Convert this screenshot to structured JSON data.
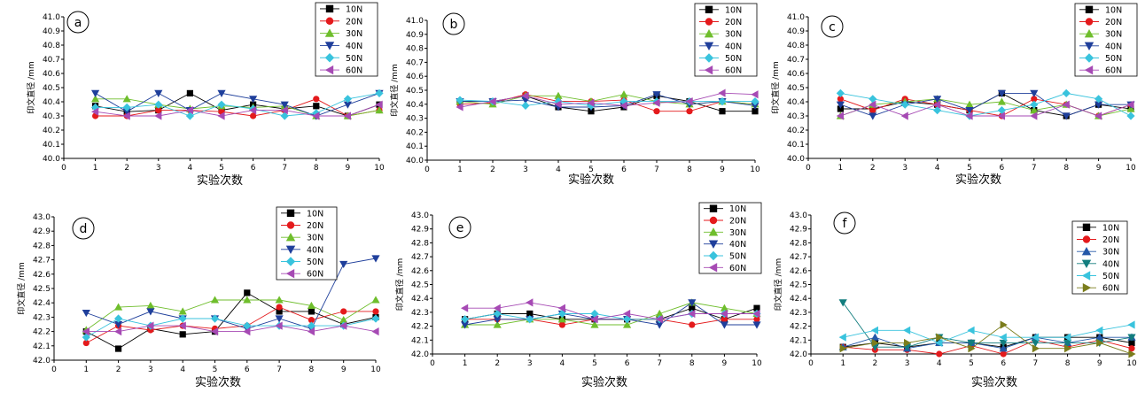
{
  "colors": {
    "10N": "#000000",
    "20N": "#e41a1c",
    "30N": "#6fbe2c",
    "40N": "#1f3f9b",
    "50N": "#39c3dd",
    "60N": "#a64ab4",
    "f_30N": "#2458a8",
    "f_40N": "#127d7e",
    "f_60N": "#7b7d1c"
  },
  "chart_data": [
    {
      "panel": "a",
      "type": "line",
      "xlabel": "实验次数",
      "ylabel": "印文直径 /mm",
      "xlim": [
        0,
        10
      ],
      "ylim": [
        40.0,
        41.0
      ],
      "yticks": [
        "40.0",
        "40.1",
        "40.2",
        "40.3",
        "40.4",
        "40.5",
        "40.6",
        "40.7",
        "40.8",
        "40.9",
        "41.0"
      ],
      "xticks": [
        "0",
        "1",
        "2",
        "3",
        "4",
        "5",
        "6",
        "7",
        "8",
        "9",
        "10"
      ],
      "x": [
        1,
        2,
        3,
        4,
        5,
        6,
        7,
        8,
        9,
        10
      ],
      "series": [
        {
          "name": "10N",
          "values": [
            40.37,
            40.33,
            40.34,
            40.46,
            40.34,
            40.38,
            40.35,
            40.37,
            40.3,
            40.38
          ]
        },
        {
          "name": "20N",
          "values": [
            40.3,
            40.3,
            40.34,
            40.34,
            40.33,
            40.3,
            40.34,
            40.42,
            40.3,
            40.34
          ]
        },
        {
          "name": "30N",
          "values": [
            40.42,
            40.42,
            40.38,
            40.35,
            40.37,
            40.36,
            40.37,
            40.3,
            40.3,
            40.34
          ]
        },
        {
          "name": "40N",
          "values": [
            40.46,
            40.33,
            40.46,
            40.34,
            40.46,
            40.42,
            40.38,
            40.3,
            40.38,
            40.46
          ]
        },
        {
          "name": "50N",
          "values": [
            40.36,
            40.36,
            40.38,
            40.3,
            40.38,
            40.35,
            40.3,
            40.32,
            40.42,
            40.46
          ]
        },
        {
          "name": "60N",
          "values": [
            40.33,
            40.3,
            40.3,
            40.34,
            40.3,
            40.34,
            40.34,
            40.3,
            40.3,
            40.38
          ]
        }
      ]
    },
    {
      "panel": "b",
      "type": "line",
      "xlabel": "实验次数",
      "ylabel": "印文直径 /mm",
      "xlim": [
        0,
        10
      ],
      "ylim": [
        40.0,
        41.0
      ],
      "yticks": [
        "40.0",
        "40.1",
        "40.2",
        "40.3",
        "40.4",
        "40.5",
        "40.6",
        "40.7",
        "40.8",
        "40.9",
        "41.0"
      ],
      "xticks": [
        "0",
        "1",
        "2",
        "3",
        "4",
        "5",
        "6",
        "7",
        "8",
        "9",
        "10"
      ],
      "x": [
        1,
        2,
        3,
        4,
        5,
        6,
        7,
        8,
        9,
        10
      ],
      "series": [
        {
          "name": "10N",
          "values": [
            40.42,
            40.42,
            40.46,
            40.38,
            40.35,
            40.38,
            40.46,
            40.42,
            40.35,
            40.35
          ]
        },
        {
          "name": "20N",
          "values": [
            40.4,
            40.41,
            40.47,
            40.42,
            40.42,
            40.43,
            40.35,
            40.35,
            40.42,
            40.4
          ]
        },
        {
          "name": "30N",
          "values": [
            40.42,
            40.4,
            40.46,
            40.46,
            40.42,
            40.47,
            40.42,
            40.4,
            40.42,
            40.4
          ]
        },
        {
          "name": "40N",
          "values": [
            40.42,
            40.42,
            40.43,
            40.38,
            40.38,
            40.39,
            40.47,
            40.4,
            40.42,
            40.39
          ]
        },
        {
          "name": "50N",
          "values": [
            40.43,
            40.42,
            40.39,
            40.42,
            40.39,
            40.42,
            40.42,
            40.42,
            40.42,
            40.42
          ]
        },
        {
          "name": "60N",
          "values": [
            40.38,
            40.42,
            40.46,
            40.4,
            40.41,
            40.39,
            40.41,
            40.42,
            40.48,
            40.47
          ]
        }
      ]
    },
    {
      "panel": "c",
      "type": "line",
      "xlabel": "实验次数",
      "ylabel": "印文直径 /mm",
      "xlim": [
        0,
        10
      ],
      "ylim": [
        40.0,
        41.0
      ],
      "yticks": [
        "40.0",
        "40.1",
        "40.2",
        "40.3",
        "40.4",
        "40.5",
        "40.6",
        "40.7",
        "40.8",
        "40.9",
        "41.0"
      ],
      "xticks": [
        "0",
        "1",
        "2",
        "3",
        "4",
        "5",
        "6",
        "7",
        "8",
        "9",
        "10"
      ],
      "x": [
        1,
        2,
        3,
        4,
        5,
        6,
        7,
        8,
        9,
        10
      ],
      "series": [
        {
          "name": "10N",
          "values": [
            40.35,
            40.35,
            40.4,
            40.38,
            40.34,
            40.46,
            40.34,
            40.3,
            40.38,
            40.35
          ]
        },
        {
          "name": "20N",
          "values": [
            40.42,
            40.34,
            40.42,
            40.38,
            40.34,
            40.3,
            40.42,
            40.38,
            40.3,
            40.38
          ]
        },
        {
          "name": "30N",
          "values": [
            40.3,
            40.38,
            40.4,
            40.42,
            40.38,
            40.4,
            40.34,
            40.38,
            40.3,
            40.35
          ]
        },
        {
          "name": "40N",
          "values": [
            40.38,
            40.3,
            40.38,
            40.42,
            40.34,
            40.46,
            40.46,
            40.3,
            40.38,
            40.38
          ]
        },
        {
          "name": "50N",
          "values": [
            40.46,
            40.42,
            40.38,
            40.34,
            40.3,
            40.34,
            40.38,
            40.46,
            40.42,
            40.3
          ]
        },
        {
          "name": "60N",
          "values": [
            40.3,
            40.38,
            40.3,
            40.38,
            40.3,
            40.3,
            40.3,
            40.38,
            40.3,
            40.38
          ]
        }
      ]
    },
    {
      "panel": "d",
      "type": "line",
      "xlabel": "实验次数",
      "ylabel": "印文直径 /mm",
      "xlim": [
        0,
        10
      ],
      "ylim": [
        42.0,
        43.0
      ],
      "yticks": [
        "42.0",
        "42.1",
        "42.2",
        "42.3",
        "42.4",
        "42.5",
        "42.6",
        "42.7",
        "42.8",
        "42.9",
        "43.0"
      ],
      "xticks": [
        "0",
        "1",
        "2",
        "3",
        "4",
        "5",
        "6",
        "7",
        "8",
        "9",
        "10"
      ],
      "x": [
        1,
        2,
        3,
        4,
        5,
        6,
        7,
        8,
        9,
        10
      ],
      "series": [
        {
          "name": "10N",
          "values": [
            42.2,
            42.08,
            42.22,
            42.18,
            42.2,
            42.47,
            42.34,
            42.34,
            42.25,
            42.3
          ]
        },
        {
          "name": "20N",
          "values": [
            42.12,
            42.24,
            42.21,
            42.24,
            42.22,
            42.24,
            42.37,
            42.28,
            42.34,
            42.34
          ]
        },
        {
          "name": "30N",
          "values": [
            42.21,
            42.37,
            42.38,
            42.34,
            42.42,
            42.42,
            42.42,
            42.38,
            42.28,
            42.42
          ]
        },
        {
          "name": "40N",
          "values": [
            42.33,
            42.25,
            42.34,
            42.29,
            42.29,
            42.22,
            42.29,
            42.22,
            42.67,
            42.71
          ]
        },
        {
          "name": "50N",
          "values": [
            42.16,
            42.29,
            42.24,
            42.29,
            42.29,
            42.24,
            42.24,
            42.24,
            42.24,
            42.29
          ]
        },
        {
          "name": "60N",
          "values": [
            42.2,
            42.2,
            42.24,
            42.24,
            42.2,
            42.2,
            42.24,
            42.2,
            42.24,
            42.2
          ]
        }
      ]
    },
    {
      "panel": "e",
      "type": "line",
      "xlabel": "实验次数",
      "ylabel": "印文直径 /mm",
      "xlim": [
        0,
        10
      ],
      "ylim": [
        42.0,
        43.0
      ],
      "yticks": [
        "42.0",
        "42.1",
        "42.2",
        "42.3",
        "42.4",
        "42.5",
        "42.6",
        "42.7",
        "42.8",
        "42.9",
        "43.0"
      ],
      "xticks": [
        "0",
        "1",
        "2",
        "3",
        "4",
        "5",
        "6",
        "7",
        "8",
        "9",
        "10"
      ],
      "x": [
        1,
        2,
        3,
        4,
        5,
        6,
        7,
        8,
        9,
        10
      ],
      "series": [
        {
          "name": "10N",
          "values": [
            42.25,
            42.29,
            42.29,
            42.25,
            42.25,
            42.25,
            42.25,
            42.33,
            42.25,
            42.33
          ]
        },
        {
          "name": "20N",
          "values": [
            42.25,
            42.25,
            42.25,
            42.21,
            42.25,
            42.25,
            42.25,
            42.21,
            42.25,
            42.25
          ]
        },
        {
          "name": "30N",
          "values": [
            42.21,
            42.21,
            42.25,
            42.25,
            42.21,
            42.21,
            42.29,
            42.37,
            42.33,
            42.29
          ]
        },
        {
          "name": "40N",
          "values": [
            42.21,
            42.25,
            42.25,
            42.29,
            42.25,
            42.25,
            42.21,
            42.37,
            42.21,
            42.21
          ]
        },
        {
          "name": "50N",
          "values": [
            42.25,
            42.29,
            42.25,
            42.29,
            42.29,
            42.25,
            42.25,
            42.29,
            42.29,
            42.29
          ]
        },
        {
          "name": "60N",
          "values": [
            42.33,
            42.33,
            42.37,
            42.33,
            42.25,
            42.29,
            42.25,
            42.29,
            42.29,
            42.29
          ]
        }
      ]
    },
    {
      "panel": "f",
      "type": "line",
      "xlabel": "实验次数",
      "ylabel": "印文直径 /mm",
      "xlim": [
        0,
        10
      ],
      "ylim": [
        42.0,
        43.0
      ],
      "yticks": [
        "42.0",
        "42.1",
        "42.2",
        "42.3",
        "42.4",
        "42.5",
        "42.6",
        "42.7",
        "42.8",
        "42.9",
        "43.0"
      ],
      "xticks": [
        "0",
        "1",
        "2",
        "3",
        "4",
        "5",
        "6",
        "7",
        "8",
        "9",
        "10"
      ],
      "x": [
        1,
        2,
        3,
        4,
        5,
        6,
        7,
        8,
        9,
        10
      ],
      "series": [
        {
          "name": "10N",
          "values": [
            42.05,
            42.08,
            42.05,
            42.08,
            42.08,
            42.05,
            42.12,
            42.12,
            42.12,
            42.08
          ]
        },
        {
          "name": "20N",
          "values": [
            42.05,
            42.03,
            42.03,
            42.0,
            42.06,
            42.0,
            42.1,
            42.05,
            42.1,
            42.04
          ]
        },
        {
          "name": "30N",
          "values": [
            42.05,
            42.12,
            42.04,
            42.08,
            42.08,
            42.04,
            42.12,
            42.08,
            42.12,
            42.12
          ]
        },
        {
          "name": "40N",
          "values": [
            42.37,
            42.05,
            42.05,
            42.12,
            42.08,
            42.08,
            42.08,
            42.08,
            42.08,
            42.12
          ]
        },
        {
          "name": "50N",
          "values": [
            42.12,
            42.17,
            42.17,
            42.08,
            42.17,
            42.12,
            42.12,
            42.12,
            42.17,
            42.21
          ]
        },
        {
          "name": "60N",
          "values": [
            42.04,
            42.08,
            42.08,
            42.12,
            42.04,
            42.21,
            42.04,
            42.04,
            42.08,
            42.0
          ]
        }
      ]
    }
  ]
}
